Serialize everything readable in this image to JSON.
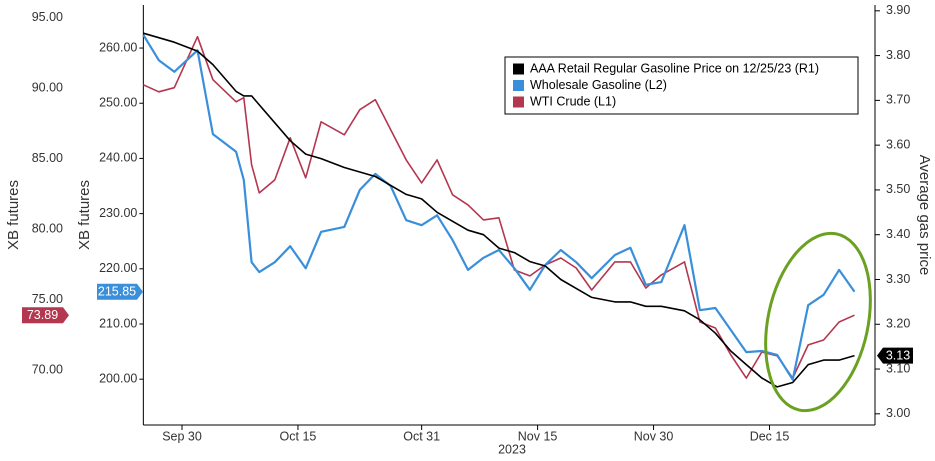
{
  "chart_data": {
    "type": "line",
    "ylabel": "XB futures",
    "y2label": "Average gas price",
    "y3label": "XB futures",
    "xlabel": "2023",
    "x": [
      "2023-09-25",
      "2023-09-27",
      "2023-09-29",
      "2023-10-02",
      "2023-10-04",
      "2023-10-07",
      "2023-10-08",
      "2023-10-09",
      "2023-10-10",
      "2023-10-12",
      "2023-10-14",
      "2023-10-16",
      "2023-10-18",
      "2023-10-21",
      "2023-10-23",
      "2023-10-25",
      "2023-10-27",
      "2023-10-29",
      "2023-10-31",
      "2023-11-02",
      "2023-11-04",
      "2023-11-06",
      "2023-11-08",
      "2023-11-10",
      "2023-11-12",
      "2023-11-14",
      "2023-11-16",
      "2023-11-18",
      "2023-11-20",
      "2023-11-22",
      "2023-11-25",
      "2023-11-27",
      "2023-11-29",
      "2023-12-01",
      "2023-12-04",
      "2023-12-06",
      "2023-12-08",
      "2023-12-10",
      "2023-12-12",
      "2023-12-14",
      "2023-12-16",
      "2023-12-18",
      "2023-12-20",
      "2023-12-22",
      "2023-12-24",
      "2023-12-26"
    ],
    "xlim": [
      "2023-09-25",
      "2023-12-28"
    ],
    "xticks": [
      {
        "value": "2023-09-30",
        "label": "Sep 30"
      },
      {
        "value": "2023-10-15",
        "label": "Oct 15"
      },
      {
        "value": "2023-10-31",
        "label": "Oct 31"
      },
      {
        "value": "2023-11-15",
        "label": "Nov 15"
      },
      {
        "value": "2023-11-30",
        "label": "Nov 30"
      },
      {
        "value": "2023-12-15",
        "label": "Dec 15"
      }
    ],
    "ylim": [
      191.7,
      267.8
    ],
    "yticks": [
      {
        "value": 200,
        "label": "200.00"
      },
      {
        "value": 210,
        "label": "210.00"
      },
      {
        "value": 220,
        "label": "220.00"
      },
      {
        "value": 230,
        "label": "230.00"
      },
      {
        "value": 240,
        "label": "240.00"
      },
      {
        "value": 250,
        "label": "250.00"
      },
      {
        "value": 260,
        "label": "260.00"
      }
    ],
    "y2lim": [
      2.975,
      3.913
    ],
    "y2ticks": [
      {
        "value": 3.0,
        "label": "3.00"
      },
      {
        "value": 3.1,
        "label": "3.10"
      },
      {
        "value": 3.2,
        "label": "3.20"
      },
      {
        "value": 3.3,
        "label": "3.30"
      },
      {
        "value": 3.4,
        "label": "3.40"
      },
      {
        "value": 3.5,
        "label": "3.50"
      },
      {
        "value": 3.6,
        "label": "3.60"
      },
      {
        "value": 3.7,
        "label": "3.70"
      },
      {
        "value": 3.8,
        "label": "3.80"
      },
      {
        "value": 3.9,
        "label": "3.90"
      }
    ],
    "y3lim": [
      66.1,
      95.9
    ],
    "y3ticks": [
      {
        "value": 70,
        "label": "70.00"
      },
      {
        "value": 75,
        "label": "75.00"
      },
      {
        "value": 80,
        "label": "80.00"
      },
      {
        "value": 85,
        "label": "85.00"
      },
      {
        "value": 90,
        "label": "90.00"
      },
      {
        "value": 95,
        "label": "95.00"
      }
    ],
    "legend": "top-right",
    "series": [
      {
        "name": "AAA Retail Regular Gasoline Price on 12/25/23 (R1)",
        "color": "#000000",
        "axis": "y2",
        "values": [
          3.85,
          3.84,
          3.83,
          3.81,
          3.78,
          3.72,
          3.71,
          3.71,
          3.69,
          3.65,
          3.61,
          3.58,
          3.57,
          3.55,
          3.54,
          3.53,
          3.51,
          3.49,
          3.48,
          3.45,
          3.43,
          3.41,
          3.4,
          3.37,
          3.36,
          3.34,
          3.33,
          3.3,
          3.28,
          3.26,
          3.25,
          3.25,
          3.24,
          3.24,
          3.23,
          3.21,
          3.18,
          3.14,
          3.11,
          3.08,
          3.06,
          3.07,
          3.11,
          3.12,
          3.12,
          3.13
        ]
      },
      {
        "name": "Wholesale Gasoline (L2)",
        "color": "#3a8fdb",
        "axis": "y",
        "values": [
          262.4,
          257.8,
          255.7,
          259.6,
          244.4,
          241.2,
          236.1,
          221.2,
          219.4,
          221.2,
          224.1,
          220.1,
          226.7,
          227.6,
          234.3,
          237.2,
          235.0,
          228.8,
          227.9,
          229.7,
          225.2,
          219.8,
          222.0,
          223.4,
          220.1,
          216.2,
          220.7,
          223.4,
          221.2,
          218.3,
          222.5,
          223.8,
          217.1,
          217.6,
          227.9,
          212.5,
          212.9,
          208.9,
          204.9,
          205.1,
          204.4,
          199.9,
          213.4,
          215.3,
          219.8,
          215.85
        ]
      },
      {
        "name": "WTI Crude (L1)",
        "color": "#b3374f",
        "axis": "y3",
        "values": [
          90.24,
          89.74,
          90.03,
          93.65,
          90.6,
          89.03,
          89.32,
          84.56,
          82.57,
          83.49,
          86.48,
          83.64,
          87.61,
          86.69,
          88.47,
          89.18,
          87.05,
          84.91,
          83.28,
          84.91,
          82.43,
          81.72,
          80.65,
          80.8,
          77.1,
          76.68,
          77.46,
          77.95,
          77.24,
          75.68,
          77.67,
          77.67,
          75.82,
          76.75,
          77.67,
          73.41,
          72.98,
          71.07,
          69.43,
          71.28,
          71,
          69.43,
          71.78,
          72.13,
          73.41,
          73.89
        ]
      }
    ]
  }
}
